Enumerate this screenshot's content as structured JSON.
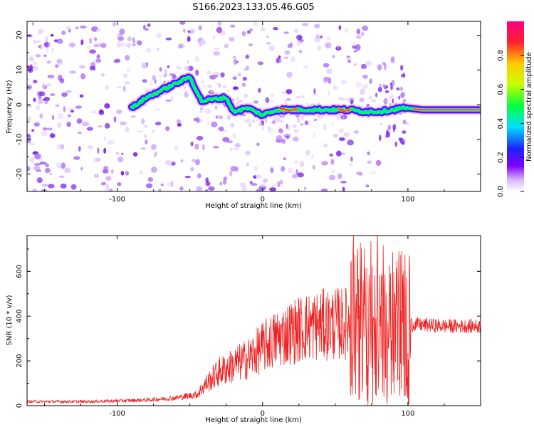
{
  "title": "S166.2023.133.05.46.G05",
  "chart_data": [
    {
      "type": "heatmap",
      "xlabel": "Height of straight line (km)",
      "ylabel": "Frequency (Hz)",
      "xlim": [
        -162,
        150
      ],
      "ylim": [
        -25,
        24
      ],
      "xticks": [
        -100,
        0,
        100
      ],
      "yticks": [
        -20,
        -10,
        0,
        10,
        20
      ],
      "colorbar": {
        "label": "Normalized spectral amplitude",
        "range": [
          0,
          1
        ],
        "ticks": [
          0.0,
          0.2,
          0.4,
          0.6,
          0.8
        ],
        "tick_labels": [
          "0.0",
          "0.2",
          "0.4",
          "0.6",
          "0.8"
        ]
      },
      "ridge": {
        "x": [
          -90,
          -80,
          -70,
          -60,
          -50,
          -42,
          -35,
          -25,
          -20,
          -15,
          -10,
          0,
          10,
          20,
          40,
          60,
          70,
          80,
          90,
          95,
          100,
          110,
          130,
          150
        ],
        "y": [
          -1,
          2,
          4,
          6,
          8,
          1,
          1.5,
          2,
          -2,
          -1.5,
          -1,
          -3,
          -1.5,
          -1.5,
          -1.5,
          -1.5,
          -2,
          -2,
          -1.5,
          -1,
          -1,
          -1.5,
          -1.5,
          -1.5
        ]
      }
    },
    {
      "type": "line",
      "xlabel": "Height of straight line (km)",
      "ylabel": "SNR (10 * v/v)",
      "xlim": [
        -162,
        150
      ],
      "ylim": [
        0,
        760
      ],
      "xticks": [
        -100,
        0,
        100
      ],
      "yticks": [
        0,
        200,
        400,
        600
      ],
      "color": "#ee2222",
      "envelope": {
        "x": [
          -162,
          -120,
          -80,
          -60,
          -45,
          -40,
          -30,
          -20,
          -10,
          0,
          10,
          20,
          30,
          40,
          50,
          60,
          70,
          80,
          90,
          100,
          110,
          130,
          150
        ],
        "y": [
          18,
          18,
          25,
          35,
          50,
          90,
          150,
          180,
          210,
          260,
          300,
          330,
          350,
          360,
          365,
          370,
          375,
          380,
          370,
          365,
          360,
          355,
          355
        ]
      }
    }
  ]
}
